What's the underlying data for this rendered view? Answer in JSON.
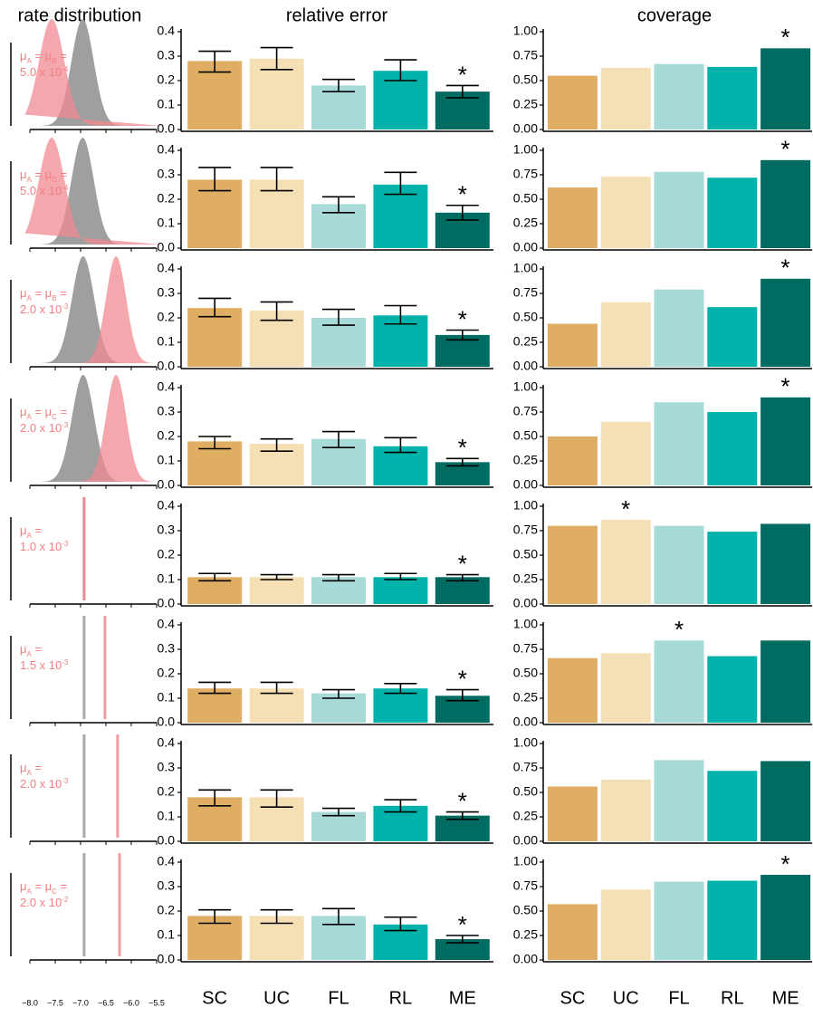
{
  "chart_data": [
    {
      "type": "density",
      "title": "rate distribution",
      "xlim": [
        -8.1,
        -5.4
      ],
      "xticks": [
        {
          "value": -8,
          "label": "−8.0"
        },
        {
          "value": -7.5,
          "label": "−7.5"
        },
        {
          "value": -7,
          "label": "−7.0"
        },
        {
          "value": -6.5,
          "label": "−6.5"
        },
        {
          "value": -6,
          "label": "−6.0"
        },
        {
          "value": -5.5,
          "label": "−5.5"
        }
      ],
      "panels": [
        {
          "label": [
            [
              {
                "text": "μ"
              },
              {
                "sub": "A"
              },
              {
                "text": " = μ"
              },
              {
                "sub": "B"
              },
              {
                "text": " ="
              }
            ],
            [
              {
                "text": "5.0 x 10"
              },
              {
                "sup": "-4"
              }
            ]
          ],
          "curves": [
            {
              "color": "#9a9a9a",
              "mean": -6.96,
              "sd": 0.22
            },
            {
              "color": "#f08a90",
              "mean": -7.57,
              "sd": 0.25
            }
          ],
          "lines": []
        },
        {
          "label": [
            [
              {
                "text": "μ"
              },
              {
                "sub": "A"
              },
              {
                "text": " = μ"
              },
              {
                "sub": "C"
              },
              {
                "text": " ="
              }
            ],
            [
              {
                "text": "5.0 x 10"
              },
              {
                "sup": "-4"
              }
            ]
          ],
          "curves": [
            {
              "color": "#9a9a9a",
              "mean": -6.96,
              "sd": 0.22
            },
            {
              "color": "#f08a90",
              "mean": -7.57,
              "sd": 0.25
            }
          ],
          "lines": []
        },
        {
          "label": [
            [
              {
                "text": "μ"
              },
              {
                "sub": "A"
              },
              {
                "text": " = μ"
              },
              {
                "sub": "B"
              },
              {
                "text": " ="
              }
            ],
            [
              {
                "text": "2.0 x 10"
              },
              {
                "sup": "-3"
              }
            ]
          ],
          "curves": [
            {
              "color": "#9a9a9a",
              "mean": -6.95,
              "sd": 0.22
            },
            {
              "color": "#f08a90",
              "mean": -6.3,
              "sd": 0.2
            }
          ],
          "lines": []
        },
        {
          "label": [
            [
              {
                "text": "μ"
              },
              {
                "sub": "A"
              },
              {
                "text": " = μ"
              },
              {
                "sub": "C"
              },
              {
                "text": " ="
              }
            ],
            [
              {
                "text": "2.0 x 10"
              },
              {
                "sup": "-3"
              }
            ]
          ],
          "curves": [
            {
              "color": "#9a9a9a",
              "mean": -6.95,
              "sd": 0.22
            },
            {
              "color": "#f08a90",
              "mean": -6.3,
              "sd": 0.2
            }
          ],
          "lines": []
        },
        {
          "label": [
            [
              {
                "text": "μ"
              },
              {
                "sub": "A"
              },
              {
                "text": " ="
              }
            ],
            [
              {
                "text": "1.0 x 10"
              },
              {
                "sup": "-3"
              }
            ]
          ],
          "curves": [],
          "lines": [
            {
              "color": "#9a9a9a",
              "value": -6.93
            },
            {
              "color": "#f08a90",
              "value": -6.93
            }
          ]
        },
        {
          "label": [
            [
              {
                "text": "μ"
              },
              {
                "sub": "A"
              },
              {
                "text": " ="
              }
            ],
            [
              {
                "text": "1.5 x 10"
              },
              {
                "sup": "-3"
              }
            ]
          ],
          "curves": [],
          "lines": [
            {
              "color": "#9a9a9a",
              "value": -6.93
            },
            {
              "color": "#f08a90",
              "value": -6.52
            }
          ]
        },
        {
          "label": [
            [
              {
                "text": "μ"
              },
              {
                "sub": "A"
              },
              {
                "text": " ="
              }
            ],
            [
              {
                "text": "2.0 x 10"
              },
              {
                "sup": "-3"
              }
            ]
          ],
          "curves": [],
          "lines": [
            {
              "color": "#9a9a9a",
              "value": -6.93
            },
            {
              "color": "#f08a90",
              "value": -6.27
            }
          ]
        },
        {
          "label": [
            [
              {
                "text": "μ"
              },
              {
                "sub": "A"
              },
              {
                "text": " = μ"
              },
              {
                "sub": "C"
              },
              {
                "text": " ="
              }
            ],
            [
              {
                "text": "2.0 x 10"
              },
              {
                "sup": "-2"
              }
            ]
          ],
          "curves": [],
          "lines": [
            {
              "color": "#9a9a9a",
              "value": -6.93
            },
            {
              "color": "#f08a90",
              "value": -6.23
            }
          ]
        }
      ]
    },
    {
      "type": "bar",
      "title": "relative error",
      "categories": [
        "SC",
        "UC",
        "FL",
        "RL",
        "ME"
      ],
      "colors": [
        "#e0ae62",
        "#f5dfb5",
        "#a8dad8",
        "#00b2a9",
        "#006b61"
      ],
      "ylim": [
        0,
        0.4
      ],
      "yticks": [
        {
          "value": 0,
          "label": "0.0"
        },
        0.1,
        0.2,
        0.3,
        0.4
      ],
      "panels": [
        {
          "values": [
            0.28,
            0.29,
            0.18,
            0.24,
            0.155
          ],
          "lower": [
            0.235,
            0.245,
            0.155,
            0.2,
            0.13
          ],
          "upper": [
            0.32,
            0.335,
            0.205,
            0.285,
            0.18
          ],
          "annotations": [
            null,
            null,
            null,
            null,
            "*"
          ]
        },
        {
          "values": [
            0.28,
            0.28,
            0.18,
            0.26,
            0.145
          ],
          "lower": [
            0.235,
            0.235,
            0.145,
            0.22,
            0.115
          ],
          "upper": [
            0.33,
            0.33,
            0.21,
            0.31,
            0.175
          ],
          "annotations": [
            null,
            null,
            null,
            null,
            "*"
          ]
        },
        {
          "values": [
            0.24,
            0.23,
            0.2,
            0.21,
            0.13
          ],
          "lower": [
            0.205,
            0.19,
            0.17,
            0.175,
            0.11
          ],
          "upper": [
            0.28,
            0.265,
            0.235,
            0.25,
            0.15
          ],
          "annotations": [
            null,
            null,
            null,
            null,
            "*"
          ]
        },
        {
          "values": [
            0.18,
            0.17,
            0.19,
            0.16,
            0.095
          ],
          "lower": [
            0.15,
            0.14,
            0.155,
            0.135,
            0.08
          ],
          "upper": [
            0.2,
            0.19,
            0.22,
            0.195,
            0.11
          ],
          "annotations": [
            null,
            null,
            null,
            null,
            "*"
          ]
        },
        {
          "values": [
            0.11,
            0.11,
            0.11,
            0.11,
            0.11
          ],
          "lower": [
            0.095,
            0.1,
            0.095,
            0.1,
            0.095
          ],
          "upper": [
            0.125,
            0.12,
            0.12,
            0.125,
            0.12
          ],
          "annotations": [
            null,
            null,
            null,
            null,
            "*"
          ]
        },
        {
          "values": [
            0.14,
            0.14,
            0.12,
            0.14,
            0.11
          ],
          "lower": [
            0.12,
            0.12,
            0.1,
            0.12,
            0.09
          ],
          "upper": [
            0.165,
            0.165,
            0.135,
            0.16,
            0.135
          ],
          "annotations": [
            null,
            null,
            null,
            null,
            "*"
          ]
        },
        {
          "values": [
            0.18,
            0.18,
            0.12,
            0.145,
            0.105
          ],
          "lower": [
            0.145,
            0.14,
            0.105,
            0.12,
            0.09
          ],
          "upper": [
            0.21,
            0.21,
            0.135,
            0.17,
            0.12
          ],
          "annotations": [
            null,
            null,
            null,
            null,
            "*"
          ]
        },
        {
          "values": [
            0.18,
            0.18,
            0.18,
            0.145,
            0.085
          ],
          "lower": [
            0.15,
            0.15,
            0.145,
            0.12,
            0.07
          ],
          "upper": [
            0.205,
            0.205,
            0.21,
            0.175,
            0.1
          ],
          "annotations": [
            null,
            null,
            null,
            null,
            "*"
          ]
        }
      ]
    },
    {
      "type": "bar",
      "title": "coverage",
      "categories": [
        "SC",
        "UC",
        "FL",
        "RL",
        "ME"
      ],
      "colors": [
        "#e0ae62",
        "#f5dfb5",
        "#a8dad8",
        "#00b2a9",
        "#006b61"
      ],
      "ylim": [
        0,
        1
      ],
      "yticks": [
        {
          "value": 0,
          "label": "0.00"
        },
        0.25,
        {
          "value": 0.5,
          "label": "0.50"
        },
        0.75,
        {
          "value": 1,
          "label": "1.00"
        }
      ],
      "panels": [
        {
          "values": [
            0.55,
            0.63,
            0.67,
            0.64,
            0.83
          ],
          "annotations": [
            null,
            null,
            null,
            null,
            "*"
          ]
        },
        {
          "values": [
            0.62,
            0.73,
            0.78,
            0.72,
            0.9
          ],
          "annotations": [
            null,
            null,
            null,
            null,
            "*"
          ]
        },
        {
          "values": [
            0.44,
            0.66,
            0.79,
            0.61,
            0.9
          ],
          "annotations": [
            null,
            null,
            null,
            null,
            "*"
          ]
        },
        {
          "values": [
            0.5,
            0.65,
            0.85,
            0.75,
            0.9
          ],
          "annotations": [
            null,
            null,
            null,
            null,
            "*"
          ]
        },
        {
          "values": [
            0.8,
            0.86,
            0.8,
            0.74,
            0.82
          ],
          "annotations": [
            null,
            "*",
            null,
            null,
            null
          ]
        },
        {
          "values": [
            0.66,
            0.71,
            0.84,
            0.68,
            0.84
          ],
          "annotations": [
            null,
            null,
            "*",
            null,
            null
          ]
        },
        {
          "values": [
            0.56,
            0.63,
            0.83,
            0.72,
            0.82
          ],
          "annotations": [
            null,
            null,
            null,
            null,
            null
          ]
        },
        {
          "values": [
            0.57,
            0.72,
            0.8,
            0.81,
            0.87
          ],
          "annotations": [
            null,
            null,
            null,
            null,
            "*"
          ]
        }
      ]
    }
  ]
}
